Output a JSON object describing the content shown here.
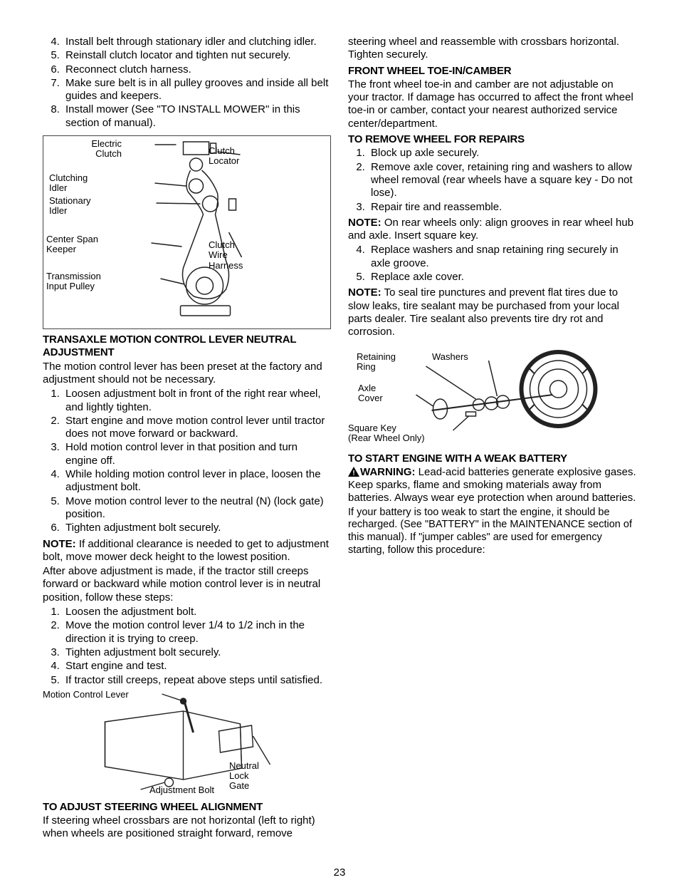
{
  "page_number": "23",
  "colors": {
    "text": "#000000",
    "background": "#ffffff",
    "figure_border": "#444444",
    "stroke": "#222222"
  },
  "typography": {
    "body_font": "Arial, Helvetica, sans-serif",
    "body_size_pt": 11,
    "heading_weight": "bold",
    "label_size_pt": 10
  },
  "left_col": {
    "list_a": {
      "start": 4,
      "items": [
        "Install belt through stationary idler and clutching idler.",
        "Reinstall clutch locator and tighten nut securely.",
        "Reconnect clutch harness.",
        "Make sure belt is in all pulley grooves and inside all belt guides and keepers.",
        "Install mower (See \"TO INSTALL MOWER\" in this section of manual)."
      ]
    },
    "fig1": {
      "type": "labeled-diagram",
      "subject": "Transaxle belt routing",
      "labels": {
        "electric_clutch": "Electric\nClutch",
        "clutch_locator": "Clutch\nLocator",
        "clutching_idler": "Clutching\nIdler",
        "stationary_idler": "Stationary\nIdler",
        "center_span_keeper": "Center Span\nKeeper",
        "clutch_wire_harness": "Clutch\nWire\nHarness",
        "transmission_input_pulley": "Transmission\nInput Pulley"
      }
    },
    "heading_transaxle": "TRANSAXLE  MOTION CONTROL LEVER NEUTRAL ADJUSTMENT",
    "para_transaxle_intro": "The motion control lever has been preset at the factory and adjustment should not be necessary.",
    "list_b": [
      "Loosen adjustment bolt in front of the right rear wheel, and lightly tighten.",
      "Start engine and move motion control lever until tractor does not move forward or backward.",
      "Hold motion control lever in that position and turn engine off.",
      "While holding motion control lever in place, loosen the adjustment bolt.",
      "Move motion control lever to the neutral (N) (lock gate) position.",
      "Tighten adjustment bolt securely."
    ],
    "note1_label": "NOTE:",
    "note1_text": "  If additional clearance is needed to get to adjustment bolt, move mower deck height to the lowest position.",
    "para_after_adjust": "After above adjustment is made, if the tractor still creeps forward or backward while motion control lever is in neutral position, follow these steps:",
    "list_c": [
      "Loosen the adjustment bolt.",
      "Move the motion control lever 1/4  to 1/2 inch in the direction it is trying to creep.",
      "Tighten adjustment bolt securely.",
      "Start engine and test.",
      "If tractor still creeps, repeat above steps until satisfied."
    ]
  },
  "right_col": {
    "fig2": {
      "type": "labeled-diagram",
      "subject": "Motion control lever neutral lock gate",
      "labels": {
        "motion_control_lever": "Motion Control Lever",
        "adjustment_bolt": "Adjustment Bolt",
        "neutral_lock_gate": "Neutral\nLock\nGate"
      }
    },
    "heading_steering": "TO ADJUST STEERING WHEEL ALIGNMENT",
    "para_steering": "If steering wheel crossbars are not horizontal (left to right) when wheels are positioned straight forward, remove steering wheel and reassemble with crossbars horizontal. Tighten securely.",
    "heading_front_wheel": "FRONT WHEEL TOE-IN/CAMBER",
    "para_front_wheel": "The front wheel toe-in and camber are not adjustable on your tractor.  If damage has occurred to affect the front wheel toe-in or camber, contact your nearest authorized service center/department.",
    "heading_remove_wheel": "TO REMOVE WHEEL FOR REPAIRS",
    "list_d": [
      "Block up axle securely.",
      "Remove axle cover, retaining ring and washers to allow wheel removal (rear wheels have a square key - Do not lose).",
      "Repair tire and reassemble."
    ],
    "note2_label": "NOTE:",
    "note2_text": " On rear wheels only:  align grooves in rear wheel hub and axle.  Insert square key.",
    "list_e": {
      "start": 4,
      "items": [
        "Replace washers and snap retaining ring securely in axle groove.",
        "Replace axle cover."
      ]
    },
    "note3_label": "NOTE:",
    "note3_text": " To seal tire punctures and prevent flat tires due to slow leaks, tire sealant may be purchased from your local parts dealer. Tire sealant also prevents tire dry rot and corrosion.",
    "fig3": {
      "type": "labeled-diagram",
      "subject": "Wheel assembly exploded view",
      "labels": {
        "retaining_ring": "Retaining\nRing",
        "washers": "Washers",
        "axle_cover": "Axle\nCover",
        "square_key": "Square Key\n(Rear Wheel Only)"
      }
    },
    "heading_weak_battery": "TO START ENGINE WITH A WEAK BATTERY",
    "warning_label": "WARNING:",
    "warning_text": "  Lead-acid batteries generate explosive gases.  Keep sparks, flame and smoking materials away from batteries.  Always wear eye protection when around batteries.",
    "para_battery": "If your battery is too weak to start the engine, it should be recharged. (See \"BATTERY\" in the MAINTENANCE section of this manual). If \"jumper cables\" are used for emergency starting, follow this procedure:"
  }
}
